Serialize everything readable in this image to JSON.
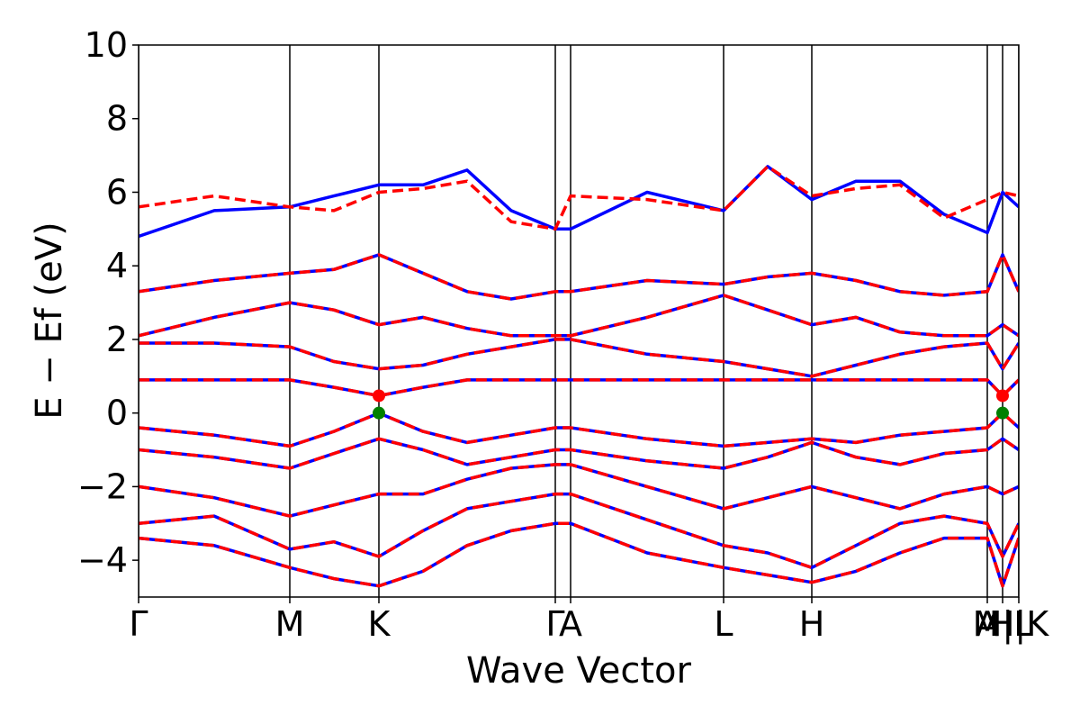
{
  "chart_data": {
    "type": "line",
    "xlabel": "Wave Vector",
    "ylabel": "E − Ef (eV)",
    "xlim": [
      0,
      9.78
    ],
    "ylim": [
      -5,
      10
    ],
    "xticks": [
      {
        "value": 0,
        "label": "Γ"
      },
      {
        "value": 1.68,
        "label": "M"
      },
      {
        "value": 2.67,
        "label": "K"
      },
      {
        "value": 4.63,
        "label": "Γ"
      },
      {
        "value": 4.8,
        "label": "A"
      },
      {
        "value": 6.5,
        "label": "L"
      },
      {
        "value": 7.48,
        "label": "H"
      },
      {
        "value": 9.43,
        "label": "A"
      },
      {
        "value": 9.6,
        "label": "M|L"
      },
      {
        "value": 9.78,
        "label": "H|K"
      }
    ],
    "yticks": [
      {
        "value": -4,
        "label": "−4"
      },
      {
        "value": -2,
        "label": "−2"
      },
      0,
      2,
      4,
      6,
      8,
      10
    ],
    "x": [
      0,
      0.84,
      1.68,
      2.17,
      2.67,
      3.16,
      3.65,
      4.14,
      4.63,
      4.8,
      5.65,
      6.5,
      6.99,
      7.48,
      7.97,
      8.46,
      8.95,
      9.43,
      9.6,
      9.78
    ],
    "series": [
      {
        "color": "#0000ff",
        "dashed": false,
        "values": [
          -0.4,
          -0.6,
          -0.9,
          -0.5,
          0.0,
          -0.5,
          -0.8,
          -0.6,
          -0.4,
          -0.4,
          -0.7,
          -0.9,
          -0.8,
          -0.7,
          -0.8,
          -0.6,
          -0.5,
          -0.4,
          0.0,
          -0.4
        ]
      },
      {
        "color": "#0000ff",
        "dashed": false,
        "values": [
          -1.0,
          -1.2,
          -1.5,
          -1.1,
          -0.7,
          -1.0,
          -1.4,
          -1.2,
          -1.0,
          -1.0,
          -1.3,
          -1.5,
          -1.2,
          -0.8,
          -1.2,
          -1.4,
          -1.1,
          -1.0,
          -0.7,
          -1.0
        ]
      },
      {
        "color": "#0000ff",
        "dashed": false,
        "values": [
          -2.0,
          -2.3,
          -2.8,
          -2.5,
          -2.2,
          -2.2,
          -1.8,
          -1.5,
          -1.4,
          -1.4,
          -2.0,
          -2.6,
          -2.3,
          -2.0,
          -2.3,
          -2.6,
          -2.2,
          -2.0,
          -2.2,
          -2.0
        ]
      },
      {
        "color": "#0000ff",
        "dashed": false,
        "values": [
          -3.0,
          -2.8,
          -3.7,
          -3.5,
          -3.9,
          -3.2,
          -2.6,
          -2.4,
          -2.2,
          -2.2,
          -2.9,
          -3.6,
          -3.8,
          -4.2,
          -3.6,
          -3.0,
          -2.8,
          -3.0,
          -3.9,
          -3.0
        ]
      },
      {
        "color": "#0000ff",
        "dashed": false,
        "values": [
          -3.4,
          -3.6,
          -4.2,
          -4.5,
          -4.7,
          -4.3,
          -3.6,
          -3.2,
          -3.0,
          -3.0,
          -3.8,
          -4.2,
          -4.4,
          -4.6,
          -4.3,
          -3.8,
          -3.4,
          -3.4,
          -4.7,
          -3.4
        ]
      },
      {
        "color": "#0000ff",
        "dashed": false,
        "values": [
          0.9,
          0.9,
          0.9,
          0.7,
          0.47,
          0.7,
          0.9,
          0.9,
          0.9,
          0.9,
          0.9,
          0.9,
          0.9,
          0.9,
          0.9,
          0.9,
          0.9,
          0.9,
          0.47,
          0.9
        ]
      },
      {
        "color": "#0000ff",
        "dashed": false,
        "values": [
          1.9,
          1.9,
          1.8,
          1.4,
          1.2,
          1.3,
          1.6,
          1.8,
          2.0,
          2.0,
          1.6,
          1.4,
          1.2,
          1.0,
          1.3,
          1.6,
          1.8,
          1.9,
          1.2,
          1.9
        ]
      },
      {
        "color": "#0000ff",
        "dashed": false,
        "values": [
          2.1,
          2.6,
          3.0,
          2.8,
          2.4,
          2.6,
          2.3,
          2.1,
          2.1,
          2.1,
          2.6,
          3.2,
          2.8,
          2.4,
          2.6,
          2.2,
          2.1,
          2.1,
          2.4,
          2.1
        ]
      },
      {
        "color": "#0000ff",
        "dashed": false,
        "values": [
          3.3,
          3.6,
          3.8,
          3.9,
          4.3,
          3.8,
          3.3,
          3.1,
          3.3,
          3.3,
          3.6,
          3.5,
          3.7,
          3.8,
          3.6,
          3.3,
          3.2,
          3.3,
          4.3,
          3.3
        ]
      },
      {
        "color": "#0000ff",
        "dashed": false,
        "values": [
          4.8,
          5.5,
          5.6,
          5.9,
          6.2,
          6.2,
          6.6,
          5.5,
          5.0,
          5.0,
          6.0,
          5.5,
          6.7,
          5.8,
          6.3,
          6.3,
          5.4,
          4.9,
          6.0,
          5.6
        ]
      },
      {
        "color": "#ff0000",
        "dashed": true,
        "values": [
          -0.4,
          -0.6,
          -0.9,
          -0.5,
          0.0,
          -0.5,
          -0.8,
          -0.6,
          -0.4,
          -0.4,
          -0.7,
          -0.9,
          -0.8,
          -0.7,
          -0.8,
          -0.6,
          -0.5,
          -0.4,
          0.0,
          -0.4
        ]
      },
      {
        "color": "#ff0000",
        "dashed": true,
        "values": [
          -1.0,
          -1.2,
          -1.5,
          -1.1,
          -0.7,
          -1.0,
          -1.4,
          -1.2,
          -1.0,
          -1.0,
          -1.3,
          -1.5,
          -1.2,
          -0.8,
          -1.2,
          -1.4,
          -1.1,
          -1.0,
          -0.7,
          -1.0
        ]
      },
      {
        "color": "#ff0000",
        "dashed": true,
        "values": [
          -2.0,
          -2.3,
          -2.8,
          -2.5,
          -2.2,
          -2.2,
          -1.8,
          -1.5,
          -1.4,
          -1.4,
          -2.0,
          -2.6,
          -2.3,
          -2.0,
          -2.3,
          -2.6,
          -2.2,
          -2.0,
          -2.2,
          -2.0
        ]
      },
      {
        "color": "#ff0000",
        "dashed": true,
        "values": [
          -3.0,
          -2.8,
          -3.7,
          -3.5,
          -3.9,
          -3.2,
          -2.6,
          -2.4,
          -2.2,
          -2.2,
          -2.9,
          -3.6,
          -3.8,
          -4.2,
          -3.6,
          -3.0,
          -2.8,
          -3.0,
          -3.9,
          -3.0
        ]
      },
      {
        "color": "#ff0000",
        "dashed": true,
        "values": [
          -3.4,
          -3.6,
          -4.2,
          -4.5,
          -4.7,
          -4.3,
          -3.6,
          -3.2,
          -3.0,
          -3.0,
          -3.8,
          -4.2,
          -4.4,
          -4.6,
          -4.3,
          -3.8,
          -3.4,
          -3.4,
          -4.7,
          -3.4
        ]
      },
      {
        "color": "#ff0000",
        "dashed": true,
        "values": [
          0.9,
          0.9,
          0.9,
          0.7,
          0.47,
          0.7,
          0.9,
          0.9,
          0.9,
          0.9,
          0.9,
          0.9,
          0.9,
          0.9,
          0.9,
          0.9,
          0.9,
          0.9,
          0.47,
          0.9
        ]
      },
      {
        "color": "#ff0000",
        "dashed": true,
        "values": [
          1.9,
          1.9,
          1.8,
          1.4,
          1.2,
          1.3,
          1.6,
          1.8,
          2.0,
          2.0,
          1.6,
          1.4,
          1.2,
          1.0,
          1.3,
          1.6,
          1.8,
          1.9,
          1.2,
          1.9
        ]
      },
      {
        "color": "#ff0000",
        "dashed": true,
        "values": [
          2.1,
          2.6,
          3.0,
          2.8,
          2.4,
          2.6,
          2.3,
          2.1,
          2.1,
          2.1,
          2.6,
          3.2,
          2.8,
          2.4,
          2.6,
          2.2,
          2.1,
          2.1,
          2.4,
          2.1
        ]
      },
      {
        "color": "#ff0000",
        "dashed": true,
        "values": [
          3.3,
          3.6,
          3.8,
          3.9,
          4.3,
          3.8,
          3.3,
          3.1,
          3.3,
          3.3,
          3.6,
          3.5,
          3.7,
          3.8,
          3.6,
          3.3,
          3.2,
          3.3,
          4.3,
          3.3
        ]
      },
      {
        "color": "#ff0000",
        "dashed": true,
        "values": [
          5.6,
          5.9,
          5.6,
          5.5,
          6.0,
          6.1,
          6.3,
          5.2,
          5.0,
          5.9,
          5.8,
          5.5,
          6.7,
          5.9,
          6.1,
          6.2,
          5.3,
          5.8,
          6.0,
          5.9
        ]
      }
    ],
    "points": [
      {
        "x": 2.67,
        "y": 0,
        "color": "#008000"
      },
      {
        "x": 2.67,
        "y": 0.47,
        "color": "#ff0000"
      },
      {
        "x": 9.6,
        "y": 0,
        "color": "#008000"
      },
      {
        "x": 9.6,
        "y": 0.47,
        "color": "#ff0000"
      }
    ]
  }
}
